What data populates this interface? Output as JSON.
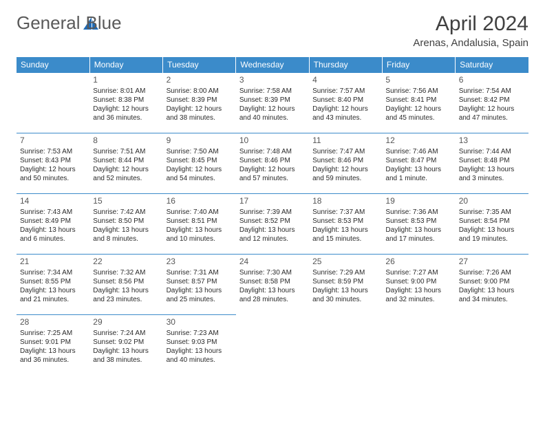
{
  "logo": {
    "text1": "General",
    "text2": "Blue"
  },
  "title": "April 2024",
  "location": "Arenas, Andalusia, Spain",
  "weekdays": [
    "Sunday",
    "Monday",
    "Tuesday",
    "Wednesday",
    "Thursday",
    "Friday",
    "Saturday"
  ],
  "colors": {
    "headerBg": "#3b8bca",
    "headerText": "#ffffff",
    "border": "#3b8bca",
    "logoGray": "#5a5a5a",
    "logoBlue": "#1e6bb8"
  },
  "weeks": [
    [
      {
        "day": "",
        "lines": []
      },
      {
        "day": "1",
        "lines": [
          "Sunrise: 8:01 AM",
          "Sunset: 8:38 PM",
          "Daylight: 12 hours and 36 minutes."
        ]
      },
      {
        "day": "2",
        "lines": [
          "Sunrise: 8:00 AM",
          "Sunset: 8:39 PM",
          "Daylight: 12 hours and 38 minutes."
        ]
      },
      {
        "day": "3",
        "lines": [
          "Sunrise: 7:58 AM",
          "Sunset: 8:39 PM",
          "Daylight: 12 hours and 40 minutes."
        ]
      },
      {
        "day": "4",
        "lines": [
          "Sunrise: 7:57 AM",
          "Sunset: 8:40 PM",
          "Daylight: 12 hours and 43 minutes."
        ]
      },
      {
        "day": "5",
        "lines": [
          "Sunrise: 7:56 AM",
          "Sunset: 8:41 PM",
          "Daylight: 12 hours and 45 minutes."
        ]
      },
      {
        "day": "6",
        "lines": [
          "Sunrise: 7:54 AM",
          "Sunset: 8:42 PM",
          "Daylight: 12 hours and 47 minutes."
        ]
      }
    ],
    [
      {
        "day": "7",
        "lines": [
          "Sunrise: 7:53 AM",
          "Sunset: 8:43 PM",
          "Daylight: 12 hours and 50 minutes."
        ]
      },
      {
        "day": "8",
        "lines": [
          "Sunrise: 7:51 AM",
          "Sunset: 8:44 PM",
          "Daylight: 12 hours and 52 minutes."
        ]
      },
      {
        "day": "9",
        "lines": [
          "Sunrise: 7:50 AM",
          "Sunset: 8:45 PM",
          "Daylight: 12 hours and 54 minutes."
        ]
      },
      {
        "day": "10",
        "lines": [
          "Sunrise: 7:48 AM",
          "Sunset: 8:46 PM",
          "Daylight: 12 hours and 57 minutes."
        ]
      },
      {
        "day": "11",
        "lines": [
          "Sunrise: 7:47 AM",
          "Sunset: 8:46 PM",
          "Daylight: 12 hours and 59 minutes."
        ]
      },
      {
        "day": "12",
        "lines": [
          "Sunrise: 7:46 AM",
          "Sunset: 8:47 PM",
          "Daylight: 13 hours and 1 minute."
        ]
      },
      {
        "day": "13",
        "lines": [
          "Sunrise: 7:44 AM",
          "Sunset: 8:48 PM",
          "Daylight: 13 hours and 3 minutes."
        ]
      }
    ],
    [
      {
        "day": "14",
        "lines": [
          "Sunrise: 7:43 AM",
          "Sunset: 8:49 PM",
          "Daylight: 13 hours and 6 minutes."
        ]
      },
      {
        "day": "15",
        "lines": [
          "Sunrise: 7:42 AM",
          "Sunset: 8:50 PM",
          "Daylight: 13 hours and 8 minutes."
        ]
      },
      {
        "day": "16",
        "lines": [
          "Sunrise: 7:40 AM",
          "Sunset: 8:51 PM",
          "Daylight: 13 hours and 10 minutes."
        ]
      },
      {
        "day": "17",
        "lines": [
          "Sunrise: 7:39 AM",
          "Sunset: 8:52 PM",
          "Daylight: 13 hours and 12 minutes."
        ]
      },
      {
        "day": "18",
        "lines": [
          "Sunrise: 7:37 AM",
          "Sunset: 8:53 PM",
          "Daylight: 13 hours and 15 minutes."
        ]
      },
      {
        "day": "19",
        "lines": [
          "Sunrise: 7:36 AM",
          "Sunset: 8:53 PM",
          "Daylight: 13 hours and 17 minutes."
        ]
      },
      {
        "day": "20",
        "lines": [
          "Sunrise: 7:35 AM",
          "Sunset: 8:54 PM",
          "Daylight: 13 hours and 19 minutes."
        ]
      }
    ],
    [
      {
        "day": "21",
        "lines": [
          "Sunrise: 7:34 AM",
          "Sunset: 8:55 PM",
          "Daylight: 13 hours and 21 minutes."
        ]
      },
      {
        "day": "22",
        "lines": [
          "Sunrise: 7:32 AM",
          "Sunset: 8:56 PM",
          "Daylight: 13 hours and 23 minutes."
        ]
      },
      {
        "day": "23",
        "lines": [
          "Sunrise: 7:31 AM",
          "Sunset: 8:57 PM",
          "Daylight: 13 hours and 25 minutes."
        ]
      },
      {
        "day": "24",
        "lines": [
          "Sunrise: 7:30 AM",
          "Sunset: 8:58 PM",
          "Daylight: 13 hours and 28 minutes."
        ]
      },
      {
        "day": "25",
        "lines": [
          "Sunrise: 7:29 AM",
          "Sunset: 8:59 PM",
          "Daylight: 13 hours and 30 minutes."
        ]
      },
      {
        "day": "26",
        "lines": [
          "Sunrise: 7:27 AM",
          "Sunset: 9:00 PM",
          "Daylight: 13 hours and 32 minutes."
        ]
      },
      {
        "day": "27",
        "lines": [
          "Sunrise: 7:26 AM",
          "Sunset: 9:00 PM",
          "Daylight: 13 hours and 34 minutes."
        ]
      }
    ],
    [
      {
        "day": "28",
        "lines": [
          "Sunrise: 7:25 AM",
          "Sunset: 9:01 PM",
          "Daylight: 13 hours and 36 minutes."
        ]
      },
      {
        "day": "29",
        "lines": [
          "Sunrise: 7:24 AM",
          "Sunset: 9:02 PM",
          "Daylight: 13 hours and 38 minutes."
        ]
      },
      {
        "day": "30",
        "lines": [
          "Sunrise: 7:23 AM",
          "Sunset: 9:03 PM",
          "Daylight: 13 hours and 40 minutes."
        ]
      },
      {
        "day": "",
        "lines": []
      },
      {
        "day": "",
        "lines": []
      },
      {
        "day": "",
        "lines": []
      },
      {
        "day": "",
        "lines": []
      }
    ]
  ]
}
